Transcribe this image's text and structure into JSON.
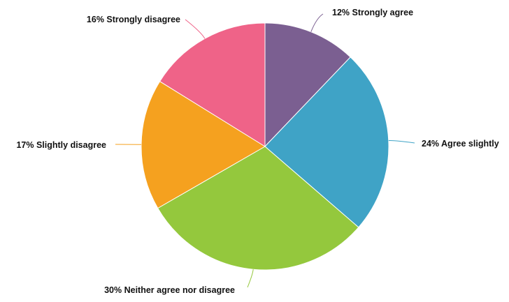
{
  "chart_data": {
    "type": "pie",
    "title": "",
    "slices": [
      {
        "label": "Strongly agree",
        "value": 12,
        "value_text": "12%",
        "display_label": "12% Strongly agree",
        "color": "#7b5f91"
      },
      {
        "label": "Agree slightly",
        "value": 24,
        "value_text": "24%",
        "display_label": "24% Agree slightly",
        "color": "#3fa3c6"
      },
      {
        "label": "Neither agree nor disagree",
        "value": 30,
        "value_text": "30%",
        "display_label": "30% Neither agree nor disagree",
        "color": "#94c83d"
      },
      {
        "label": "Slightly disagree",
        "value": 17,
        "value_text": "17%",
        "display_label": "17% Slightly disagree",
        "color": "#f5a11f"
      },
      {
        "label": "Strongly disagree",
        "value": 16,
        "value_text": "16%",
        "display_label": "16% Strongly disagree",
        "color": "#ef6388"
      }
    ],
    "start_angle_deg": 0,
    "direction": "clockwise",
    "legend": "none",
    "labels": "outside-with-leader-lines"
  }
}
